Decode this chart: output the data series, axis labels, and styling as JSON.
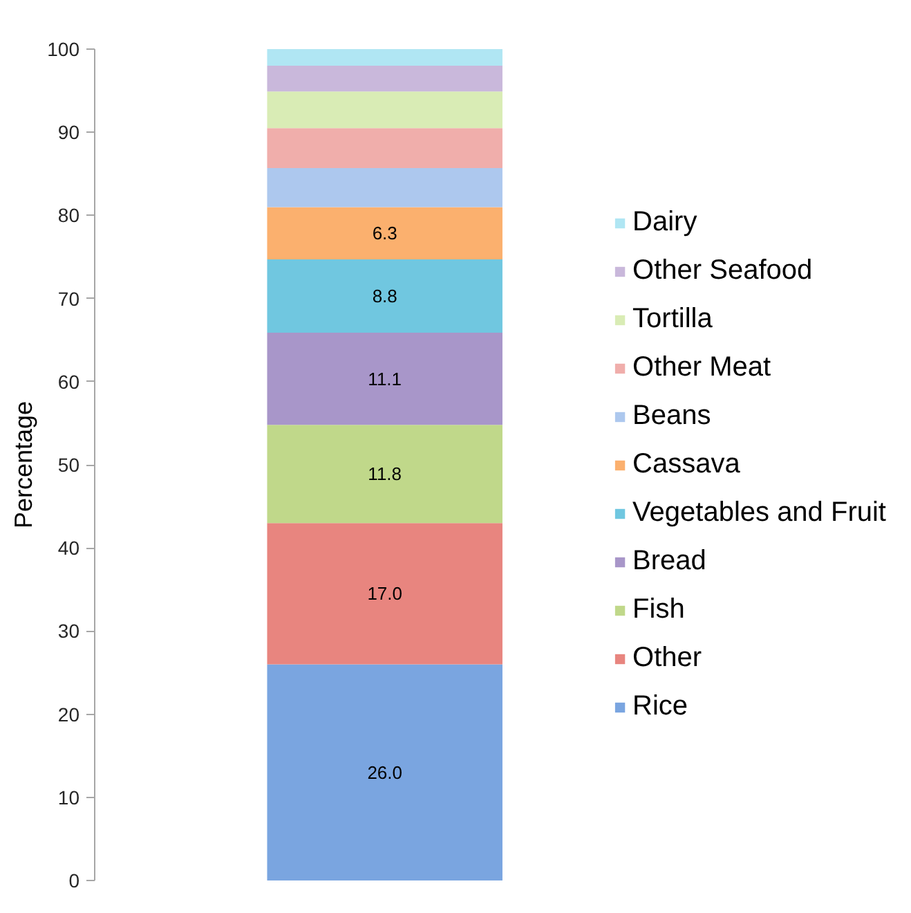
{
  "chart_data": {
    "type": "bar",
    "ylabel": "Percentage",
    "stacked": true,
    "categories": [
      null
    ],
    "ylim": [
      0,
      100
    ],
    "yticks": [
      0,
      10,
      20,
      30,
      40,
      50,
      60,
      70,
      80,
      90,
      100
    ],
    "grid": false,
    "legend": "right",
    "series": [
      {
        "name": "Rice",
        "color": "#7aa5e0",
        "values": [
          26.0
        ],
        "value_labels": [
          "26.0"
        ]
      },
      {
        "name": "Other",
        "color": "#e8857f",
        "values": [
          17.0
        ],
        "value_labels": [
          "17.0"
        ]
      },
      {
        "name": "Fish",
        "color": "#c0d88a",
        "values": [
          11.8
        ],
        "value_labels": [
          "11.8"
        ]
      },
      {
        "name": "Bread",
        "color": "#a896c9",
        "values": [
          11.1
        ],
        "value_labels": [
          "11.1"
        ]
      },
      {
        "name": "Vegetables and Fruit",
        "color": "#70c7e0",
        "values": [
          8.8
        ],
        "value_labels": [
          "8.8"
        ]
      },
      {
        "name": "Cassava",
        "color": "#fbb06e",
        "values": [
          6.3
        ],
        "value_labels": [
          "6.3"
        ]
      },
      {
        "name": "Beans",
        "color": "#adc8ee",
        "values": [
          4.7
        ],
        "value_labels": [
          null
        ]
      },
      {
        "name": "Other Meat",
        "color": "#f0aeab",
        "values": [
          4.8
        ],
        "value_labels": [
          null
        ]
      },
      {
        "name": "Tortilla",
        "color": "#d9ecb5",
        "values": [
          4.4
        ],
        "value_labels": [
          null
        ]
      },
      {
        "name": "Other Seafood",
        "color": "#c9b8db",
        "values": [
          3.1
        ],
        "value_labels": [
          null
        ]
      },
      {
        "name": "Dairy",
        "color": "#b0e6f3",
        "values": [
          2.0
        ],
        "value_labels": [
          null
        ]
      }
    ]
  }
}
